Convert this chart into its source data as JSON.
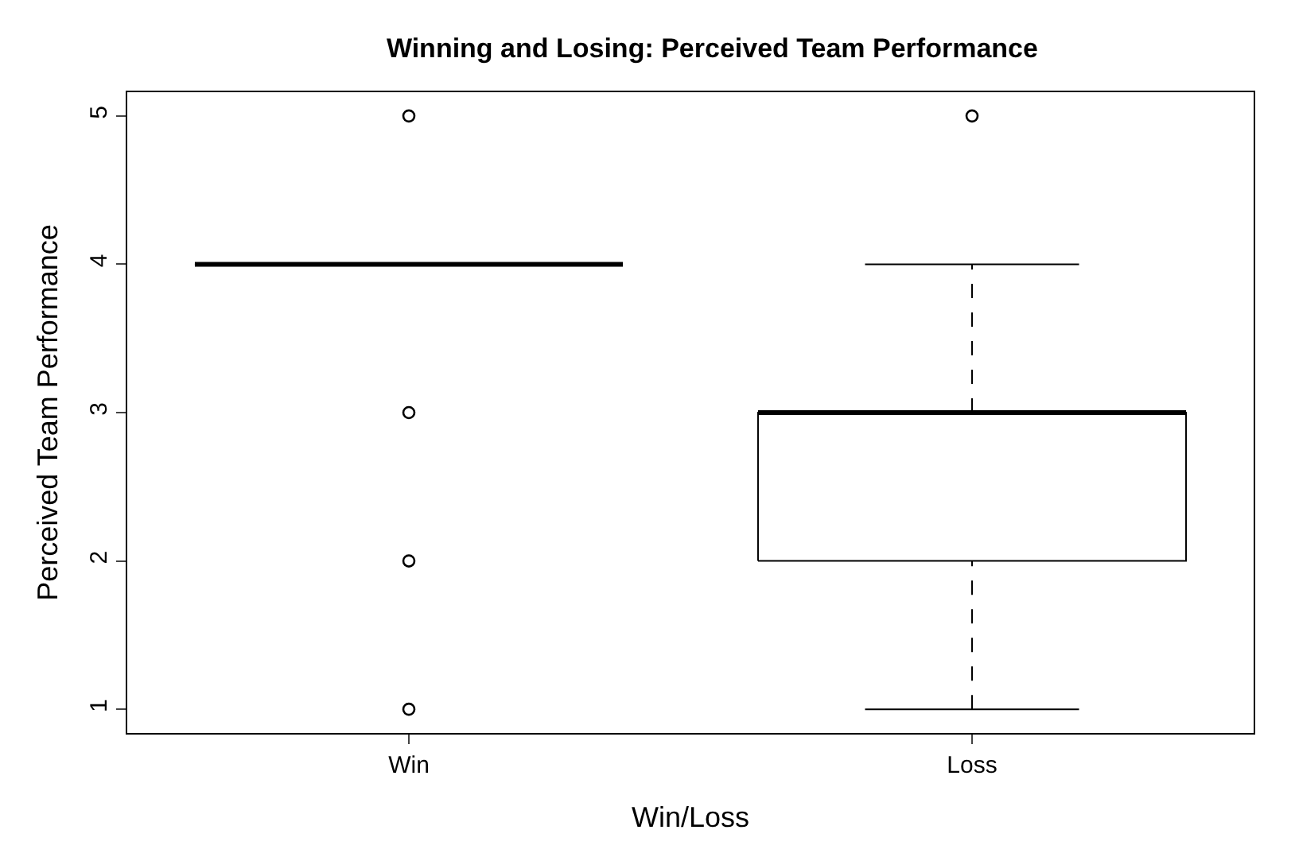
{
  "chart_data": {
    "type": "box",
    "title": "Winning and Losing: Perceived Team Performance",
    "xlabel": "Win/Loss",
    "ylabel": "Perceived Team Performance",
    "categories": [
      "Win",
      "Loss"
    ],
    "boxes": [
      {
        "low": 4,
        "q1": 4,
        "median": 4,
        "q3": 4,
        "high": 4,
        "outliers": [
          5,
          3,
          2,
          1
        ]
      },
      {
        "low": 1,
        "q1": 2,
        "median": 3,
        "q3": 3,
        "high": 4,
        "outliers": [
          5
        ]
      }
    ],
    "color": "#000000",
    "ylim": [
      0.84,
      5.16
    ],
    "yticks": [
      1,
      2,
      3,
      4,
      5
    ],
    "marker": "circle"
  }
}
